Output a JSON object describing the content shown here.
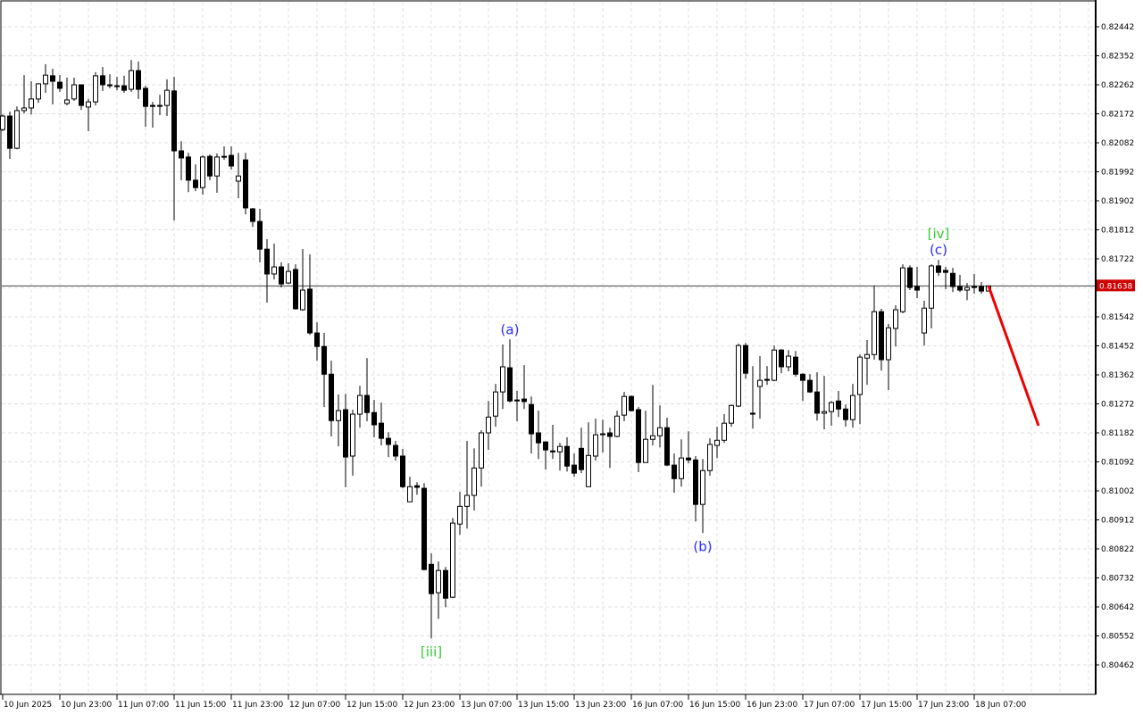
{
  "chart_data": {
    "type": "candlestick",
    "title": "",
    "y_axis": {
      "position": "right",
      "ticks": [
        "0.82442",
        "0.82352",
        "0.82262",
        "0.82172",
        "0.82082",
        "0.81992",
        "0.81902",
        "0.81812",
        "0.81722",
        "0.81632",
        "0.81542",
        "0.81452",
        "0.81362",
        "0.81272",
        "0.81182",
        "0.81092",
        "0.81002",
        "0.80912",
        "0.80822",
        "0.80732",
        "0.80642",
        "0.80552",
        "0.80462"
      ],
      "hidden_tick": "0.81632",
      "range": [
        0.8039,
        0.82535
      ]
    },
    "x_axis": {
      "ticks": [
        {
          "label": "10 Jun 2025",
          "bar": 0
        },
        {
          "label": "10 Jun 23:00",
          "bar": 8
        },
        {
          "label": "11 Jun 07:00",
          "bar": 16
        },
        {
          "label": "11 Jun 15:00",
          "bar": 24
        },
        {
          "label": "11 Jun 23:00",
          "bar": 32
        },
        {
          "label": "12 Jun 07:00",
          "bar": 40
        },
        {
          "label": "12 Jun 15:00",
          "bar": 48
        },
        {
          "label": "12 Jun 23:00",
          "bar": 56
        },
        {
          "label": "13 Jun 07:00",
          "bar": 64
        },
        {
          "label": "13 Jun 15:00",
          "bar": 72
        },
        {
          "label": "13 Jun 23:00",
          "bar": 80
        },
        {
          "label": "16 Jun 07:00",
          "bar": 88
        },
        {
          "label": "16 Jun 15:00",
          "bar": 96
        },
        {
          "label": "16 Jun 23:00",
          "bar": 104
        },
        {
          "label": "17 Jun 07:00",
          "bar": 112
        },
        {
          "label": "17 Jun 15:00",
          "bar": 120
        },
        {
          "label": "17 Jun 23:00",
          "bar": 128
        },
        {
          "label": "18 Jun 07:00",
          "bar": 136
        }
      ]
    },
    "grid": true,
    "current_price": {
      "value": "0.81638",
      "line_color": "#404040",
      "label_bg": "#cc0000"
    },
    "candle_format": [
      "open",
      "high",
      "low",
      "close"
    ],
    "candles": [
      [
        0.82123,
        0.8217,
        0.82118,
        0.82165
      ],
      [
        0.82165,
        0.82179,
        0.82032,
        0.82065
      ],
      [
        0.82065,
        0.82195,
        0.82062,
        0.82182
      ],
      [
        0.82182,
        0.82292,
        0.82173,
        0.8219
      ],
      [
        0.8219,
        0.82273,
        0.8217,
        0.82218
      ],
      [
        0.82218,
        0.82267,
        0.82206,
        0.82265
      ],
      [
        0.82265,
        0.82326,
        0.82237,
        0.82292
      ],
      [
        0.8229,
        0.82312,
        0.82201,
        0.82273
      ],
      [
        0.8227,
        0.82292,
        0.8224,
        0.82251
      ],
      [
        0.82204,
        0.82284,
        0.82198,
        0.82215
      ],
      [
        0.82218,
        0.82284,
        0.82212,
        0.82262
      ],
      [
        0.82262,
        0.82262,
        0.82184,
        0.82198
      ],
      [
        0.82193,
        0.82218,
        0.82118,
        0.82209
      ],
      [
        0.82209,
        0.82301,
        0.82198,
        0.8229
      ],
      [
        0.8229,
        0.82317,
        0.82243,
        0.82262
      ],
      [
        0.82262,
        0.82295,
        0.82251,
        0.82259
      ],
      [
        0.82259,
        0.82287,
        0.82245,
        0.82259
      ],
      [
        0.82259,
        0.8229,
        0.82237,
        0.82245
      ],
      [
        0.82248,
        0.82339,
        0.8224,
        0.82306
      ],
      [
        0.82306,
        0.82334,
        0.82218,
        0.82248
      ],
      [
        0.82251,
        0.82259,
        0.82132,
        0.82195
      ],
      [
        0.82198,
        0.82209,
        0.82129,
        0.82195
      ],
      [
        0.82198,
        0.82231,
        0.82168,
        0.82198
      ],
      [
        0.82198,
        0.82279,
        0.82165,
        0.82245
      ],
      [
        0.82243,
        0.82287,
        0.81841,
        0.82057
      ],
      [
        0.82057,
        0.82087,
        0.81966,
        0.82035
      ],
      [
        0.82038,
        0.82051,
        0.81929,
        0.81966
      ],
      [
        0.81966,
        0.82015,
        0.81932,
        0.81943
      ],
      [
        0.81943,
        0.82043,
        0.81921,
        0.82038
      ],
      [
        0.8204,
        0.82046,
        0.81966,
        0.81979
      ],
      [
        0.81979,
        0.82049,
        0.81927,
        0.82038
      ],
      [
        0.8204,
        0.82071,
        0.82029,
        0.8204
      ],
      [
        0.82043,
        0.82071,
        0.81999,
        0.8201
      ],
      [
        0.81963,
        0.82051,
        0.8191,
        0.81979
      ],
      [
        0.82029,
        0.82051,
        0.8186,
        0.8188
      ],
      [
        0.81877,
        0.8188,
        0.81821,
        0.81838
      ],
      [
        0.81838,
        0.81877,
        0.81711,
        0.81752
      ],
      [
        0.81752,
        0.81783,
        0.81586,
        0.81675
      ],
      [
        0.81675,
        0.81769,
        0.81658,
        0.81697
      ],
      [
        0.81697,
        0.81711,
        0.81633,
        0.81644
      ],
      [
        0.81647,
        0.81708,
        0.81644,
        0.81683
      ],
      [
        0.81689,
        0.81705,
        0.81564,
        0.81567
      ],
      [
        0.81564,
        0.81752,
        0.81561,
        0.81625
      ],
      [
        0.81628,
        0.81736,
        0.81486,
        0.81492
      ],
      [
        0.81492,
        0.81525,
        0.81406,
        0.8145
      ],
      [
        0.8145,
        0.81492,
        0.81262,
        0.81364
      ],
      [
        0.81364,
        0.81406,
        0.81171,
        0.8122
      ],
      [
        0.8122,
        0.81301,
        0.8114,
        0.81251
      ],
      [
        0.81254,
        0.81303,
        0.81013,
        0.81107
      ],
      [
        0.8111,
        0.81254,
        0.81049,
        0.8124
      ],
      [
        0.8124,
        0.81328,
        0.81198,
        0.81298
      ],
      [
        0.81298,
        0.81414,
        0.81218,
        0.81245
      ],
      [
        0.81245,
        0.81284,
        0.81168,
        0.81207
      ],
      [
        0.81212,
        0.81276,
        0.81143,
        0.81165
      ],
      [
        0.81165,
        0.81184,
        0.81107,
        0.81146
      ],
      [
        0.81143,
        0.81157,
        0.81096,
        0.8111
      ],
      [
        0.8111,
        0.81132,
        0.8101,
        0.81015
      ],
      [
        0.80968,
        0.81046,
        0.80968,
        0.81015
      ],
      [
        0.81018,
        0.81029,
        0.8099,
        0.81013
      ],
      [
        0.8101,
        0.81026,
        0.80755,
        0.80758
      ],
      [
        0.80774,
        0.80808,
        0.80544,
        0.80683
      ],
      [
        0.80686,
        0.80783,
        0.80605,
        0.80755
      ],
      [
        0.80755,
        0.80766,
        0.80641,
        0.80669
      ],
      [
        0.80672,
        0.80918,
        0.80669,
        0.80902
      ],
      [
        0.80899,
        0.80999,
        0.80866,
        0.80954
      ],
      [
        0.80954,
        0.81157,
        0.80885,
        0.80988
      ],
      [
        0.80988,
        0.81134,
        0.80941,
        0.81073
      ],
      [
        0.81073,
        0.8119,
        0.81015,
        0.81182
      ],
      [
        0.81182,
        0.81281,
        0.81129,
        0.81231
      ],
      [
        0.81234,
        0.81334,
        0.81201,
        0.81309
      ],
      [
        0.81309,
        0.81456,
        0.81256,
        0.81387
      ],
      [
        0.81384,
        0.81472,
        0.81276,
        0.81281
      ],
      [
        0.81284,
        0.81312,
        0.81218,
        0.81281
      ],
      [
        0.81287,
        0.81392,
        0.81256,
        0.81279
      ],
      [
        0.8127,
        0.81295,
        0.81118,
        0.81179
      ],
      [
        0.81182,
        0.81251,
        0.81101,
        0.81151
      ],
      [
        0.81154,
        0.81154,
        0.81068,
        0.81129
      ],
      [
        0.81126,
        0.81207,
        0.81101,
        0.81123
      ],
      [
        0.81123,
        0.81151,
        0.81065,
        0.8114
      ],
      [
        0.8114,
        0.81168,
        0.81062,
        0.81079
      ],
      [
        0.81082,
        0.81118,
        0.81046,
        0.81057
      ],
      [
        0.81134,
        0.81198,
        0.81057,
        0.81068
      ],
      [
        0.81015,
        0.81215,
        0.81015,
        0.81112
      ],
      [
        0.8111,
        0.81226,
        0.81096,
        0.81176
      ],
      [
        0.81179,
        0.81223,
        0.81121,
        0.81179
      ],
      [
        0.81182,
        0.81198,
        0.81073,
        0.81171
      ],
      [
        0.81171,
        0.81251,
        0.81168,
        0.81234
      ],
      [
        0.81237,
        0.81309,
        0.81218,
        0.81295
      ],
      [
        0.81295,
        0.81298,
        0.81248,
        0.81251
      ],
      [
        0.81254,
        0.81262,
        0.8106,
        0.8109
      ],
      [
        0.8109,
        0.81251,
        0.8109,
        0.81162
      ],
      [
        0.81162,
        0.81331,
        0.81143,
        0.81173
      ],
      [
        0.81173,
        0.81267,
        0.81137,
        0.81198
      ],
      [
        0.81198,
        0.81229,
        0.81079,
        0.81082
      ],
      [
        0.81082,
        0.81118,
        0.80996,
        0.8104
      ],
      [
        0.8104,
        0.81162,
        0.81015,
        0.81104
      ],
      [
        0.81104,
        0.81187,
        0.81087,
        0.81098
      ],
      [
        0.81098,
        0.8111,
        0.80907,
        0.8096
      ],
      [
        0.8096,
        0.81101,
        0.80871,
        0.81065
      ],
      [
        0.81065,
        0.81165,
        0.81049,
        0.81146
      ],
      [
        0.81143,
        0.81201,
        0.81104,
        0.81159
      ],
      [
        0.81159,
        0.8124,
        0.81151,
        0.81212
      ],
      [
        0.81212,
        0.8127,
        0.81201,
        0.81267
      ],
      [
        0.81265,
        0.81459,
        0.81262,
        0.81453
      ],
      [
        0.81453,
        0.81461,
        0.8135,
        0.81367
      ],
      [
        0.81243,
        0.81389,
        0.81195,
        0.8124
      ],
      [
        0.81326,
        0.8142,
        0.81226,
        0.81345
      ],
      [
        0.81348,
        0.81389,
        0.81331,
        0.81345
      ],
      [
        0.81345,
        0.81453,
        0.81342,
        0.81439
      ],
      [
        0.81439,
        0.81442,
        0.81367,
        0.81387
      ],
      [
        0.81387,
        0.81439,
        0.81373,
        0.8142
      ],
      [
        0.81417,
        0.81436,
        0.81356,
        0.81364
      ],
      [
        0.81364,
        0.81367,
        0.81281,
        0.81345
      ],
      [
        0.81345,
        0.81364,
        0.81306,
        0.81309
      ],
      [
        0.81309,
        0.8137,
        0.8122,
        0.81243
      ],
      [
        0.81243,
        0.81359,
        0.81193,
        0.81248
      ],
      [
        0.81248,
        0.81281,
        0.81204,
        0.81276
      ],
      [
        0.81281,
        0.81312,
        0.81231,
        0.81256
      ],
      [
        0.81256,
        0.8127,
        0.81201,
        0.81223
      ],
      [
        0.81223,
        0.81334,
        0.81198,
        0.81298
      ],
      [
        0.81301,
        0.81425,
        0.81209,
        0.81417
      ],
      [
        0.81414,
        0.8147,
        0.81331,
        0.81425
      ],
      [
        0.81425,
        0.81639,
        0.81409,
        0.81558
      ],
      [
        0.81558,
        0.81567,
        0.81375,
        0.81409
      ],
      [
        0.81409,
        0.8152,
        0.81315,
        0.81508
      ],
      [
        0.81506,
        0.81578,
        0.8145,
        0.81564
      ],
      [
        0.81558,
        0.81705,
        0.81553,
        0.81694
      ],
      [
        0.81694,
        0.81702,
        0.81625,
        0.81633
      ],
      [
        0.81636,
        0.81697,
        0.816,
        0.81625
      ],
      [
        0.81492,
        0.81592,
        0.81453,
        0.81569
      ],
      [
        0.81569,
        0.81705,
        0.81506,
        0.817
      ],
      [
        0.817,
        0.81719,
        0.81669,
        0.8168
      ],
      [
        0.81686,
        0.81697,
        0.81628,
        0.8168
      ],
      [
        0.81677,
        0.81694,
        0.81619,
        0.81636
      ],
      [
        0.81636,
        0.81672,
        0.81619,
        0.81625
      ],
      [
        0.81625,
        0.81647,
        0.81594,
        0.81633
      ],
      [
        0.81636,
        0.81675,
        0.81614,
        0.81633
      ],
      [
        0.81636,
        0.8165,
        0.81614,
        0.81622
      ],
      [
        0.81622,
        0.81636,
        0.81622,
        0.81638
      ]
    ],
    "annotations": [
      {
        "text": "[iii]",
        "bar": 60,
        "price": 0.80544,
        "placement": "below",
        "color": "#33cc33"
      },
      {
        "text": "(a)",
        "bar": 71,
        "price": 0.81472,
        "placement": "above",
        "color": "#2a2aff"
      },
      {
        "text": "(b)",
        "bar": 98,
        "price": 0.80871,
        "placement": "below",
        "color": "#2a2aff"
      },
      {
        "text": "(c)",
        "bar": 131,
        "price": 0.81719,
        "placement": "above",
        "color": "#2a2aff"
      },
      {
        "text": "[iv]",
        "bar": 131,
        "price": 0.81719,
        "placement": "above-2",
        "color": "#33cc33"
      }
    ],
    "projection": {
      "from_bar": 138,
      "from_price": 0.81638,
      "to_bar": 145,
      "to_price": 0.81204,
      "color": "#ee0000"
    }
  }
}
